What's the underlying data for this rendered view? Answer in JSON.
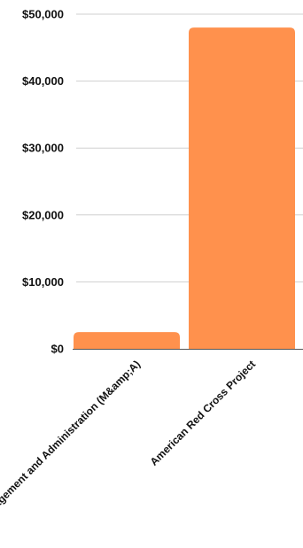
{
  "chart_data": {
    "type": "bar",
    "title": "",
    "xlabel": "",
    "ylabel": "",
    "categories": [
      "Management and Administration (M&amp;A)",
      "American Red Cross Project"
    ],
    "values": [
      2500,
      48000
    ],
    "ylim": [
      0,
      50000
    ],
    "yticks": [
      0,
      10000,
      20000,
      30000,
      40000,
      50000
    ],
    "ytick_labels": [
      "$0",
      "$10,000",
      "$20,000",
      "$30,000",
      "$40,000",
      "$50,000"
    ],
    "grid": true,
    "legend": "none",
    "bar_color": "#FF914D"
  }
}
